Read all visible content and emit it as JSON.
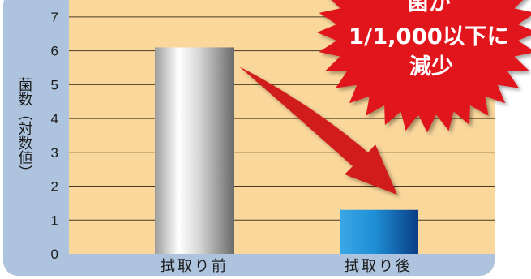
{
  "chart_data": {
    "type": "bar",
    "categories": [
      "拭取り前",
      "拭取り後"
    ],
    "values": [
      6.1,
      1.3
    ],
    "ylabel": "菌数（対数値）",
    "ylim": [
      0,
      7.5
    ],
    "yticks": [
      0,
      1,
      2,
      3,
      4,
      5,
      6,
      7
    ],
    "grid": true
  },
  "callout": {
    "lines": [
      "菌が",
      "1/1,000以下に",
      "減少"
    ]
  },
  "colors": {
    "outer_background": "#aec4de",
    "plot_background": "#fad79b",
    "gridline": "#4a3a20",
    "bar_before": "#b8b8b8",
    "bar_after": "#1c7fc4",
    "arrow": "#d11a1a",
    "burst": "#e1191c"
  }
}
